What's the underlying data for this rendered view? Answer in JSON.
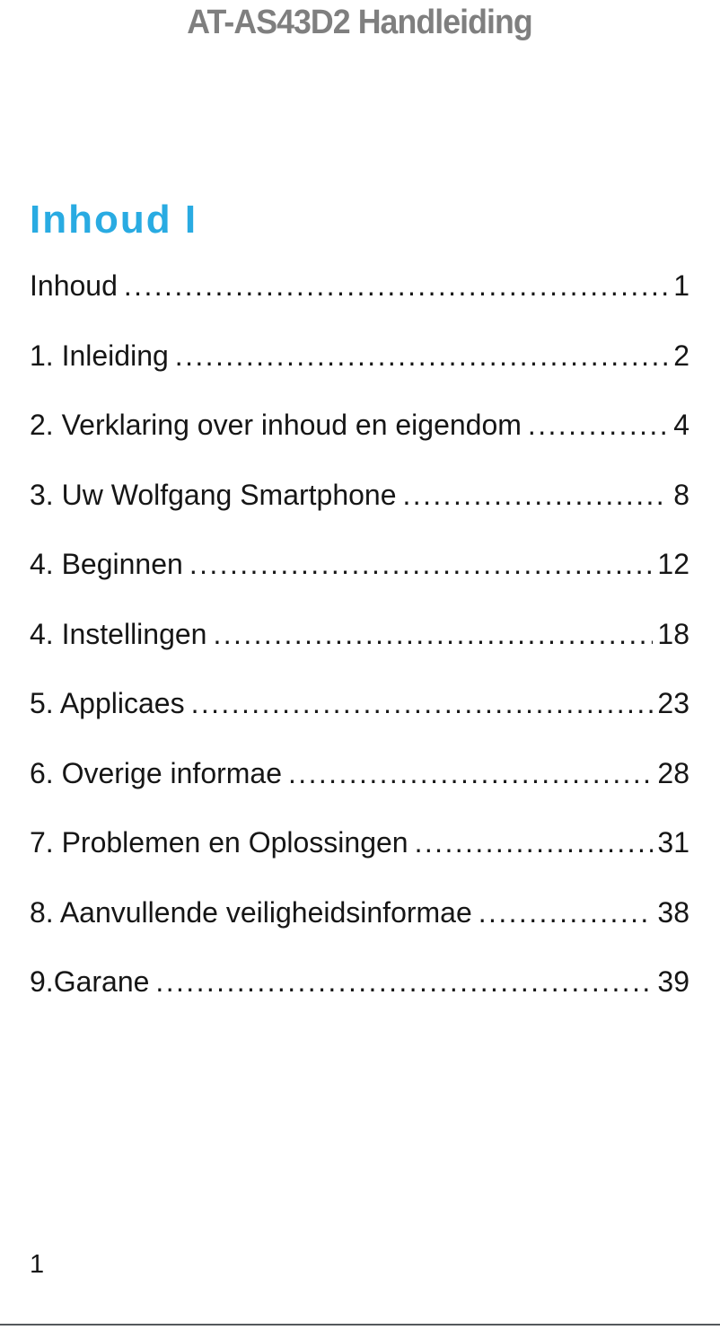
{
  "page": {
    "header_title": "AT-AS43D2 Handleiding",
    "footer_page_number": "1"
  },
  "toc": {
    "heading": "Inhoud I",
    "entries": [
      {
        "label": "Inhoud",
        "page": "1"
      },
      {
        "label": "1. Inleiding",
        "page": "2"
      },
      {
        "label": "2. Verklaring over inhoud en eigendom",
        "page": "4"
      },
      {
        "label": "3. Uw Wolfgang Smartphone",
        "page": "8"
      },
      {
        "label": "4. Beginnen",
        "page": "12"
      },
      {
        "label": "4. Instellingen",
        "page": "18"
      },
      {
        "label": "5. Applicaes",
        "page": "23"
      },
      {
        "label": "6. Overige informae",
        "page": "28"
      },
      {
        "label": "7. Problemen en Oplossingen",
        "page": "31"
      },
      {
        "label": "8. Aanvullende veiligheidsinformae",
        "page": "38"
      },
      {
        "label": "9.Garane",
        "page": "39"
      }
    ]
  },
  "colors": {
    "heading_accent": "#29ABE2",
    "header_gray": "#7F7F7F",
    "text_black": "#161616",
    "footer_rule": "#54585C"
  }
}
